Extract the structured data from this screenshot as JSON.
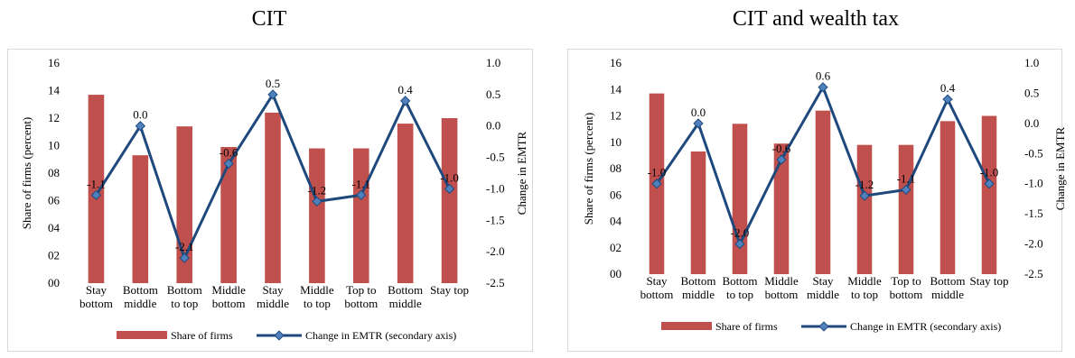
{
  "colors": {
    "bar": "#c0504d",
    "line": "#1f497d",
    "marker": "#4f81bd",
    "frame": "#d9d9d9"
  },
  "chart_data": [
    {
      "type": "bar",
      "title": "CIT",
      "categories": [
        [
          "Stay",
          "bottom"
        ],
        [
          "Bottom",
          "middle"
        ],
        [
          "Bottom",
          "to top"
        ],
        [
          "Middle",
          "bottom"
        ],
        [
          "Stay",
          "middle"
        ],
        [
          "Middle",
          "to top"
        ],
        [
          "Top to",
          "bottom"
        ],
        [
          "Bottom",
          "middle"
        ],
        [
          "Stay top"
        ]
      ],
      "ylabel": "Share of firms (percent)",
      "y2label": "Change in EMTR",
      "ylim": [
        0,
        16
      ],
      "y_ticks": [
        "00",
        "02",
        "04",
        "06",
        "08",
        "10",
        "12",
        "14",
        "16"
      ],
      "y2lim": [
        -2.5,
        1.0
      ],
      "y2_ticks": [
        "-2.5",
        "-2.0",
        "-1.5",
        "-1.0",
        "-0.5",
        "0.0",
        "0.5",
        "1.0"
      ],
      "series": [
        {
          "name": "Share of firms",
          "kind": "bar",
          "axis": "primary",
          "values": [
            13.7,
            9.3,
            11.4,
            9.9,
            12.4,
            9.8,
            9.8,
            11.6,
            12.0
          ]
        },
        {
          "name": "Change in EMTR (secondary axis)",
          "kind": "line",
          "axis": "secondary",
          "values": [
            -1.1,
            0.0,
            -2.1,
            -0.6,
            0.5,
            -1.2,
            -1.1,
            0.4,
            -1.0
          ],
          "labels": [
            "-1.1",
            "0.0",
            "-2.1",
            "-0.6",
            "0.5",
            "-1.2",
            "-1.1",
            "0.4",
            "-1.0"
          ]
        }
      ],
      "legend": "bottom"
    },
    {
      "type": "bar",
      "title": "CIT and wealth tax",
      "categories": [
        [
          "Stay",
          "bottom"
        ],
        [
          "Bottom",
          "middle"
        ],
        [
          "Bottom",
          "to top"
        ],
        [
          "Middle",
          "bottom"
        ],
        [
          "Stay",
          "middle"
        ],
        [
          "Middle",
          "to top"
        ],
        [
          "Top to",
          "bottom"
        ],
        [
          "Bottom",
          "middle"
        ],
        [
          "Stay top"
        ]
      ],
      "ylabel": "Share of firms (percent)",
      "y2label": "Change in EMTR",
      "ylim": [
        0,
        16
      ],
      "y_ticks": [
        "00",
        "02",
        "04",
        "06",
        "08",
        "10",
        "12",
        "14",
        "16"
      ],
      "y2lim": [
        -2.5,
        1.0
      ],
      "y2_ticks": [
        "-2.5",
        "-2.0",
        "-1.5",
        "-1.0",
        "-0.5",
        "0.0",
        "0.5",
        "1.0"
      ],
      "series": [
        {
          "name": "Share of firms",
          "kind": "bar",
          "axis": "primary",
          "values": [
            13.7,
            9.3,
            11.4,
            9.9,
            12.4,
            9.8,
            9.8,
            11.6,
            12.0
          ]
        },
        {
          "name": "Change in EMTR (secondary axis)",
          "kind": "line",
          "axis": "secondary",
          "values": [
            -1.0,
            0.0,
            -2.0,
            -0.6,
            0.6,
            -1.2,
            -1.1,
            0.4,
            -1.0
          ],
          "labels": [
            "-1.0",
            "0.0",
            "-2.0",
            "-0.6",
            "0.6",
            "-1.2",
            "-1.1",
            "0.4",
            "-1.0"
          ]
        }
      ],
      "legend": "bottom"
    }
  ]
}
